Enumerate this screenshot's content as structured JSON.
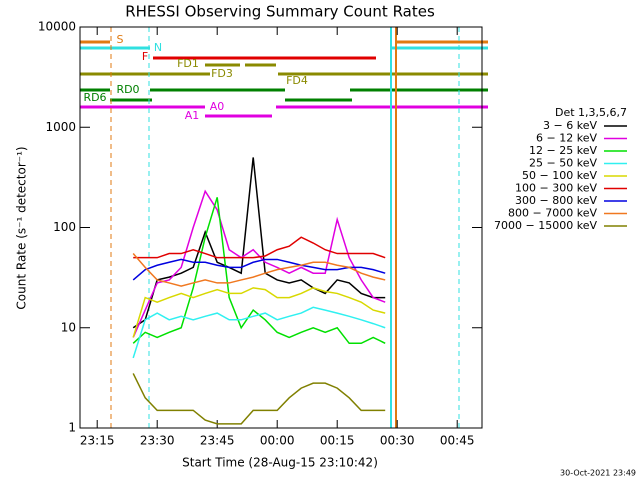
{
  "chart_data": {
    "type": "line",
    "title": "RHESSI Observing Summary Count Rates",
    "x_label": "Start Time (28-Aug-15 23:10:42)",
    "y_label": "Count Rate (s⁻¹ detector⁻¹)",
    "footer": "30-Oct-2021 23:49",
    "legend_title": "Det 1,3,5,6,7",
    "log_y": true,
    "ylim": [
      1,
      10000
    ],
    "yticks": [
      1,
      10,
      100,
      1000,
      10000
    ],
    "xlim": [
      10.7,
      111.2
    ],
    "xticks": [
      {
        "value": 15,
        "label": "23:15"
      },
      {
        "value": 30,
        "label": "23:30"
      },
      {
        "value": 45,
        "label": "23:45"
      },
      {
        "value": 60,
        "label": "00:00"
      },
      {
        "value": 75,
        "label": "00:15"
      },
      {
        "value": 90,
        "label": "00:30"
      },
      {
        "value": 105,
        "label": "00:45"
      }
    ],
    "flags": [
      {
        "label": "S",
        "color": "#e07a10"
      },
      {
        "label": "N",
        "color": "#30e0e0"
      },
      {
        "label": "F",
        "color": "#e00000"
      },
      {
        "label": "FD1",
        "color": "#8a8a00"
      },
      {
        "label": "FD3",
        "color": "#8a8a00"
      },
      {
        "label": "FD4",
        "color": "#8a8a00"
      },
      {
        "label": "RD0",
        "color": "#008000"
      },
      {
        "label": "RD6",
        "color": "#008000"
      },
      {
        "label": "A0",
        "color": "#e000e0"
      },
      {
        "label": "A1",
        "color": "#e000e0"
      }
    ],
    "x": [
      24,
      27,
      30,
      33,
      36,
      39,
      42,
      45,
      48,
      51,
      54,
      57,
      60,
      63,
      66,
      69,
      72,
      75,
      78,
      81,
      84,
      87
    ],
    "series": [
      {
        "name": "3 − 6 keV",
        "color": "#000000",
        "values": [
          10,
          12,
          30,
          32,
          35,
          40,
          90,
          45,
          40,
          35,
          500,
          35,
          30,
          28,
          30,
          25,
          22,
          30,
          28,
          22,
          20,
          20
        ]
      },
      {
        "name": "6 − 12 keV",
        "color": "#e000e0",
        "values": [
          8,
          15,
          28,
          30,
          40,
          100,
          230,
          150,
          60,
          50,
          60,
          45,
          40,
          35,
          40,
          35,
          35,
          120,
          50,
          30,
          20,
          18
        ]
      },
      {
        "name": "12 − 25 keV",
        "color": "#00e000",
        "values": [
          7,
          9,
          8,
          9,
          10,
          25,
          80,
          200,
          20,
          10,
          15,
          12,
          9,
          8,
          9,
          10,
          9,
          10,
          7,
          7,
          8,
          7
        ]
      },
      {
        "name": "25 − 50 keV",
        "color": "#30f0f0",
        "values": [
          5,
          12,
          14,
          12,
          13,
          12,
          13,
          14,
          12,
          12,
          13,
          14,
          12,
          13,
          14,
          16,
          15,
          14,
          13,
          12,
          11,
          10
        ]
      },
      {
        "name": "50 − 100 keV",
        "color": "#d8d800",
        "values": [
          8,
          20,
          18,
          20,
          22,
          20,
          22,
          24,
          22,
          22,
          25,
          24,
          20,
          20,
          22,
          25,
          23,
          22,
          20,
          18,
          15,
          14
        ]
      },
      {
        "name": "100 − 300 keV",
        "color": "#e00000",
        "values": [
          50,
          50,
          50,
          55,
          55,
          60,
          55,
          50,
          50,
          50,
          50,
          52,
          60,
          65,
          80,
          70,
          60,
          55,
          55,
          55,
          55,
          50
        ]
      },
      {
        "name": "300 − 800 keV",
        "color": "#0000e0",
        "values": [
          30,
          38,
          42,
          45,
          48,
          45,
          45,
          42,
          40,
          40,
          45,
          48,
          48,
          45,
          42,
          40,
          38,
          38,
          40,
          40,
          38,
          35
        ]
      },
      {
        "name": "800 − 7000 keV",
        "color": "#f07820",
        "values": [
          55,
          40,
          30,
          28,
          26,
          28,
          30,
          28,
          28,
          30,
          32,
          35,
          38,
          40,
          42,
          45,
          45,
          42,
          40,
          35,
          32,
          30
        ]
      },
      {
        "name": "7000 − 15000 keV",
        "color": "#808000",
        "values": [
          3.5,
          2,
          1.5,
          1.5,
          1.5,
          1.5,
          1.2,
          1.1,
          1.1,
          1.1,
          1.5,
          1.5,
          1.5,
          2,
          2.5,
          2.8,
          2.8,
          2.5,
          2,
          1.5,
          1.5,
          1.5
        ]
      }
    ]
  }
}
